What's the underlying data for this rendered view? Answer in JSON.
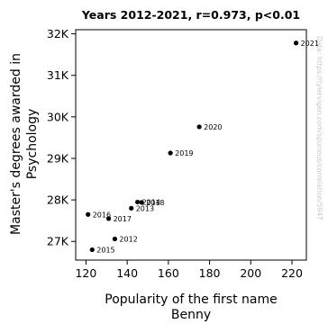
{
  "chart_data": {
    "type": "scatter",
    "title": "Years 2012-2021, r=0.973, p<0.01",
    "xlabel": [
      "Popularity of the first name",
      "Benny"
    ],
    "ylabel": [
      "Master's degrees awarded in",
      "Psychology"
    ],
    "xlim": [
      115,
      227
    ],
    "ylim": [
      26550,
      32100
    ],
    "x_ticks": [
      120,
      140,
      160,
      180,
      200,
      220
    ],
    "y_ticks": [
      {
        "value": 27000,
        "label": "27K"
      },
      {
        "value": 28000,
        "label": "28K"
      },
      {
        "value": 29000,
        "label": "29K"
      },
      {
        "value": 30000,
        "label": "30K"
      },
      {
        "value": 31000,
        "label": "31K"
      },
      {
        "value": 32000,
        "label": "32K"
      }
    ],
    "points": [
      {
        "label": "2012",
        "x": 134,
        "y": 27060
      },
      {
        "label": "2013",
        "x": 142,
        "y": 27800
      },
      {
        "label": "2014",
        "x": 145,
        "y": 27950
      },
      {
        "label": "2015",
        "x": 123,
        "y": 26800
      },
      {
        "label": "2016",
        "x": 121,
        "y": 27650
      },
      {
        "label": "2017",
        "x": 131,
        "y": 27550
      },
      {
        "label": "2018",
        "x": 147,
        "y": 27940
      },
      {
        "label": "2019",
        "x": 161,
        "y": 29130
      },
      {
        "label": "2020",
        "x": 175,
        "y": 29760
      },
      {
        "label": "2021",
        "x": 222,
        "y": 31780
      }
    ],
    "grid": false,
    "marker_color": "#000000"
  },
  "watermark": "Data: https://tylervigen.com/spurious/correlation/5947"
}
